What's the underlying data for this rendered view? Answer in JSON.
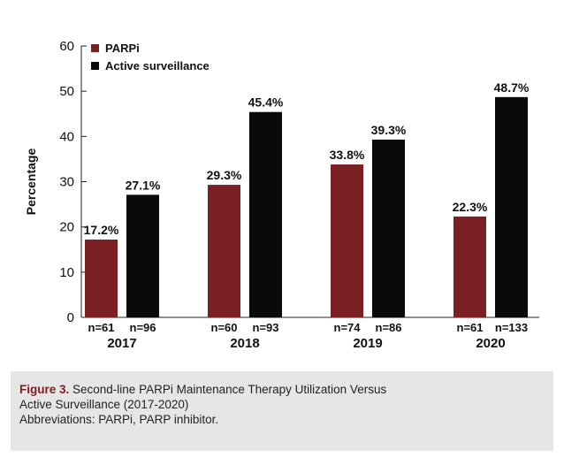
{
  "chart_data": {
    "type": "bar",
    "title": "",
    "xlabel": "",
    "ylabel": "Percentage",
    "ylim": [
      0,
      60
    ],
    "yticks": [
      0,
      10,
      20,
      30,
      40,
      50,
      60
    ],
    "categories": [
      "2017",
      "2018",
      "2019",
      "2020"
    ],
    "series": [
      {
        "name": "PARPi",
        "color": "#7a1f22",
        "values": [
          17.2,
          29.3,
          33.8,
          22.3
        ],
        "labels": [
          "17.2%",
          "29.3%",
          "33.8%",
          "22.3%"
        ],
        "n": [
          "n=61",
          "n=60",
          "n=74",
          "n=61"
        ]
      },
      {
        "name": "Active surveillance",
        "color": "#0a0a0a",
        "values": [
          27.1,
          45.4,
          39.3,
          48.7
        ],
        "labels": [
          "27.1%",
          "45.4%",
          "39.3%",
          "48.7%"
        ],
        "n": [
          "n=96",
          "n=93",
          "n=86",
          "n=133"
        ]
      }
    ],
    "legend_position": "top-left"
  },
  "caption": {
    "figure_label": "Figure 3.",
    "title_line1": " Second-line PARPi Maintenance Therapy Utilization Versus",
    "title_line2": "Active Surveillance (2017-2020)",
    "abbreviations": "Abbreviations: PARPi, PARP inhibitor."
  }
}
